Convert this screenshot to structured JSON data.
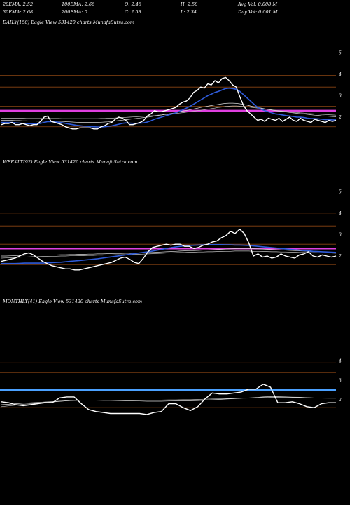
{
  "header": {
    "row1": [
      {
        "label": "20EMA:",
        "value": "2.52"
      },
      {
        "label": "100EMA:",
        "value": "2.66"
      },
      {
        "label": "O:",
        "value": "2.46"
      },
      {
        "label": "H:",
        "value": "2.58"
      },
      {
        "label": "Avg Vol:",
        "value": "0.008 M"
      }
    ],
    "row2": [
      {
        "label": "30EMA:",
        "value": "2.68"
      },
      {
        "label": "200EMA:",
        "value": "0"
      },
      {
        "label": "C:",
        "value": "2.58"
      },
      {
        "label": "L:",
        "value": "2.34"
      },
      {
        "label": "Day Vol:",
        "value": "0.001 M"
      }
    ]
  },
  "colors": {
    "background": "#000000",
    "price": "#ffffff",
    "ema_fast": "#2f5bd9",
    "ema_slow": "#d9d9d9",
    "magenta_line": "#e040e0",
    "blue_level": "#4aa0ff",
    "grid": "#8b4513"
  },
  "chart_data": [
    {
      "type": "line",
      "title": "DAILY(158) Eagle  View  531420  charts MunafaSutra.com",
      "ylim": [
        1.6,
        5.2
      ],
      "yticks": [
        "5",
        "4",
        "3",
        "2"
      ],
      "hlines": [
        4.5,
        3.95,
        3.05,
        2.1
      ],
      "magenta_level": 2.85,
      "series": [
        {
          "role": "price",
          "values": [
            2.2,
            2.25,
            2.25,
            2.3,
            2.2,
            2.2,
            2.25,
            2.2,
            2.15,
            2.2,
            2.2,
            2.35,
            2.55,
            2.6,
            2.35,
            2.3,
            2.25,
            2.2,
            2.1,
            2.05,
            2.0,
            2.0,
            2.05,
            2.05,
            2.05,
            2.05,
            2.0,
            2.0,
            2.1,
            2.15,
            2.25,
            2.3,
            2.45,
            2.55,
            2.5,
            2.4,
            2.2,
            2.2,
            2.25,
            2.3,
            2.4,
            2.6,
            2.7,
            2.85,
            2.8,
            2.8,
            2.85,
            2.9,
            2.95,
            3.0,
            3.15,
            3.25,
            3.3,
            3.45,
            3.7,
            3.8,
            3.95,
            3.9,
            4.1,
            4.05,
            4.25,
            4.15,
            4.35,
            4.4,
            4.25,
            4.05,
            3.95,
            3.5,
            3.1,
            2.85,
            2.7,
            2.55,
            2.4,
            2.45,
            2.35,
            2.5,
            2.45,
            2.4,
            2.5,
            2.35,
            2.45,
            2.55,
            2.4,
            2.35,
            2.5,
            2.4,
            2.35,
            2.3,
            2.45,
            2.4,
            2.35,
            2.3,
            2.4,
            2.35,
            2.4
          ]
        },
        {
          "role": "ema_fast",
          "values": [
            2.3,
            2.3,
            2.3,
            2.3,
            2.28,
            2.27,
            2.26,
            2.25,
            2.24,
            2.24,
            2.24,
            2.26,
            2.3,
            2.34,
            2.34,
            2.33,
            2.31,
            2.29,
            2.26,
            2.23,
            2.2,
            2.17,
            2.15,
            2.13,
            2.12,
            2.11,
            2.1,
            2.09,
            2.09,
            2.1,
            2.12,
            2.14,
            2.18,
            2.22,
            2.26,
            2.28,
            2.27,
            2.26,
            2.26,
            2.27,
            2.28,
            2.32,
            2.38,
            2.45,
            2.5,
            2.55,
            2.6,
            2.65,
            2.7,
            2.75,
            2.82,
            2.9,
            2.97,
            3.05,
            3.15,
            3.25,
            3.35,
            3.45,
            3.55,
            3.62,
            3.7,
            3.75,
            3.82,
            3.88,
            3.9,
            3.88,
            3.85,
            3.75,
            3.6,
            3.45,
            3.3,
            3.15,
            3.0,
            2.92,
            2.85,
            2.8,
            2.75,
            2.7,
            2.68,
            2.65,
            2.62,
            2.6,
            2.58,
            2.55,
            2.55,
            2.53,
            2.5,
            2.48,
            2.48,
            2.47,
            2.45,
            2.43,
            2.43,
            2.42,
            2.42
          ]
        },
        {
          "role": "ema_slow",
          "values": [
            2.4,
            2.4,
            2.4,
            2.4,
            2.39,
            2.39,
            2.38,
            2.38,
            2.37,
            2.37,
            2.36,
            2.36,
            2.36,
            2.37,
            2.37,
            2.36,
            2.36,
            2.35,
            2.34,
            2.33,
            2.32,
            2.31,
            2.3,
            2.3,
            2.3,
            2.3,
            2.3,
            2.3,
            2.31,
            2.32,
            2.33,
            2.35,
            2.37,
            2.39,
            2.41,
            2.43,
            2.45,
            2.47,
            2.49,
            2.51,
            2.53,
            2.55,
            2.57,
            2.6,
            2.62,
            2.65,
            2.68,
            2.7,
            2.73,
            2.76,
            2.8,
            2.83,
            2.86,
            2.9,
            2.93,
            2.96,
            3.0,
            3.03,
            3.06,
            3.09,
            3.12,
            3.14,
            3.17,
            3.19,
            3.2,
            3.2,
            3.19,
            3.17,
            3.14,
            3.11,
            3.07,
            3.03,
            3.0,
            2.97,
            2.94,
            2.91,
            2.88,
            2.85,
            2.83,
            2.81,
            2.79,
            2.77,
            2.75,
            2.73,
            2.71,
            2.7,
            2.68,
            2.66,
            2.64,
            2.63,
            2.61,
            2.6,
            2.59,
            2.58,
            2.57
          ]
        },
        {
          "role": "ema_slow2",
          "values": [
            2.5,
            2.5,
            2.5,
            2.5,
            2.5,
            2.5,
            2.5,
            2.49,
            2.49,
            2.49,
            2.49,
            2.49,
            2.49,
            2.49,
            2.49,
            2.49,
            2.49,
            2.48,
            2.48,
            2.48,
            2.48,
            2.48,
            2.48,
            2.48,
            2.48,
            2.48,
            2.48,
            2.48,
            2.49,
            2.49,
            2.5,
            2.5,
            2.51,
            2.52,
            2.53,
            2.54,
            2.55,
            2.56,
            2.57,
            2.58,
            2.59,
            2.6,
            2.61,
            2.62,
            2.64,
            2.65,
            2.67,
            2.68,
            2.7,
            2.72,
            2.74,
            2.76,
            2.78,
            2.8,
            2.82,
            2.85,
            2.87,
            2.9,
            2.92,
            2.95,
            2.97,
            3.0,
            3.02,
            3.05,
            3.06,
            3.07,
            3.07,
            3.06,
            3.05,
            3.03,
            3.01,
            2.99,
            2.97,
            2.95,
            2.93,
            2.91,
            2.89,
            2.87,
            2.85,
            2.83,
            2.82,
            2.8,
            2.78,
            2.77,
            2.75,
            2.74,
            2.72,
            2.71,
            2.7,
            2.69,
            2.68,
            2.67,
            2.66,
            2.65,
            2.64
          ]
        }
      ]
    },
    {
      "type": "line",
      "title": "WEEKLY(92) Eagle  View  531420  charts MunafaSutra.com",
      "ylim": [
        1.6,
        5.2
      ],
      "yticks": [
        "5",
        "4",
        "3",
        "2"
      ],
      "hlines": [
        4.55,
        3.95,
        3.1,
        2.15
      ],
      "magenta_level": 2.9,
      "series": [
        {
          "role": "price",
          "values": [
            2.3,
            2.35,
            2.4,
            2.45,
            2.55,
            2.65,
            2.7,
            2.6,
            2.45,
            2.3,
            2.2,
            2.1,
            2.05,
            2.0,
            1.95,
            1.95,
            1.9,
            1.9,
            1.95,
            2.0,
            2.05,
            2.1,
            2.15,
            2.2,
            2.25,
            2.35,
            2.45,
            2.5,
            2.4,
            2.25,
            2.2,
            2.45,
            2.75,
            2.95,
            3.0,
            3.05,
            3.1,
            3.05,
            3.1,
            3.1,
            3.0,
            3.0,
            2.9,
            2.95,
            3.05,
            3.1,
            3.2,
            3.25,
            3.4,
            3.5,
            3.7,
            3.6,
            3.8,
            3.6,
            3.15,
            2.55,
            2.65,
            2.5,
            2.55,
            2.45,
            2.5,
            2.65,
            2.55,
            2.5,
            2.45,
            2.6,
            2.65,
            2.75,
            2.55,
            2.5,
            2.6,
            2.55,
            2.5,
            2.55
          ]
        },
        {
          "role": "ema_fast",
          "values": [
            2.2,
            2.2,
            2.2,
            2.2,
            2.21,
            2.22,
            2.22,
            2.22,
            2.22,
            2.22,
            2.23,
            2.24,
            2.25,
            2.26,
            2.28,
            2.3,
            2.32,
            2.34,
            2.36,
            2.38,
            2.4,
            2.42,
            2.45,
            2.48,
            2.51,
            2.54,
            2.57,
            2.6,
            2.63,
            2.66,
            2.69,
            2.72,
            2.75,
            2.78,
            2.82,
            2.86,
            2.9,
            2.94,
            2.97,
            3.0,
            3.02,
            3.04,
            3.05,
            3.06,
            3.07,
            3.08,
            3.08,
            3.08,
            3.08,
            3.07,
            3.07,
            3.06,
            3.06,
            3.05,
            3.04,
            3.02,
            3.0,
            2.98,
            2.96,
            2.94,
            2.92,
            2.9,
            2.88,
            2.86,
            2.84,
            2.82,
            2.8,
            2.79,
            2.77,
            2.76,
            2.75,
            2.74,
            2.73,
            2.72
          ]
        },
        {
          "role": "ema_slow",
          "values": [
            2.55,
            2.55,
            2.56,
            2.57,
            2.58,
            2.59,
            2.6,
            2.6,
            2.6,
            2.6,
            2.6,
            2.6,
            2.6,
            2.61,
            2.61,
            2.62,
            2.62,
            2.63,
            2.63,
            2.64,
            2.64,
            2.65,
            2.65,
            2.66,
            2.66,
            2.67,
            2.67,
            2.68,
            2.68,
            2.69,
            2.69,
            2.7,
            2.71,
            2.72,
            2.73,
            2.74,
            2.75,
            2.76,
            2.77,
            2.78,
            2.79,
            2.8,
            2.8,
            2.81,
            2.82,
            2.83,
            2.84,
            2.85,
            2.86,
            2.87,
            2.88,
            2.89,
            2.9,
            2.9,
            2.9,
            2.89,
            2.88,
            2.87,
            2.86,
            2.85,
            2.84,
            2.83,
            2.82,
            2.81,
            2.8,
            2.79,
            2.78,
            2.77,
            2.76,
            2.75,
            2.75,
            2.74,
            2.73,
            2.72
          ]
        },
        {
          "role": "ema_slow2",
          "values": [
            2.45,
            2.46,
            2.47,
            2.48,
            2.49,
            2.5,
            2.51,
            2.52,
            2.52,
            2.53,
            2.53,
            2.54,
            2.54,
            2.55,
            2.55,
            2.56,
            2.56,
            2.57,
            2.57,
            2.58,
            2.58,
            2.59,
            2.59,
            2.6,
            2.6,
            2.61,
            2.61,
            2.62,
            2.62,
            2.63,
            2.63,
            2.64,
            2.65,
            2.66,
            2.67,
            2.68,
            2.69,
            2.7,
            2.71,
            2.72,
            2.72,
            2.73,
            2.73,
            2.74,
            2.74,
            2.75,
            2.75,
            2.76,
            2.76,
            2.77,
            2.77,
            2.78,
            2.78,
            2.78,
            2.78,
            2.77,
            2.77,
            2.76,
            2.76,
            2.75,
            2.75,
            2.74,
            2.74,
            2.73,
            2.73,
            2.72,
            2.72,
            2.71,
            2.71,
            2.7,
            2.7,
            2.69,
            2.69,
            2.68
          ]
        }
      ]
    },
    {
      "type": "line",
      "title": "MONTHLY(41) Eagle  View  531420  charts MunafaSutra.com",
      "ylim": [
        1.4,
        5.0
      ],
      "yticks": [
        "4",
        "3",
        "2"
      ],
      "hlines": [
        4.45,
        3.95,
        3.1,
        2.15
      ],
      "blue_level": 3.05,
      "series": [
        {
          "role": "price",
          "values": [
            2.45,
            2.4,
            2.3,
            2.25,
            2.3,
            2.35,
            2.4,
            2.4,
            2.65,
            2.7,
            2.7,
            2.35,
            2.05,
            1.95,
            1.9,
            1.85,
            1.85,
            1.85,
            1.85,
            1.85,
            1.8,
            1.9,
            1.95,
            2.35,
            2.35,
            2.15,
            2.0,
            2.2,
            2.6,
            2.9,
            2.85,
            2.85,
            2.9,
            2.95,
            3.1,
            3.1,
            3.35,
            3.2,
            2.4,
            2.4,
            2.45,
            2.35,
            2.2,
            2.15,
            2.35,
            2.4,
            2.4
          ]
        },
        {
          "role": "ema_slow",
          "values": [
            2.3,
            2.32,
            2.35,
            2.38,
            2.4,
            2.42,
            2.44,
            2.46,
            2.48,
            2.5,
            2.52,
            2.53,
            2.53,
            2.53,
            2.52,
            2.52,
            2.51,
            2.5,
            2.5,
            2.49,
            2.48,
            2.48,
            2.48,
            2.49,
            2.5,
            2.5,
            2.5,
            2.51,
            2.53,
            2.55,
            2.57,
            2.59,
            2.61,
            2.63,
            2.65,
            2.67,
            2.7,
            2.72,
            2.71,
            2.7,
            2.69,
            2.68,
            2.66,
            2.65,
            2.64,
            2.63,
            2.63
          ]
        },
        {
          "role": "ema_slow2",
          "values": [
            2.2,
            2.24,
            2.28,
            2.32,
            2.35,
            2.38,
            2.41,
            2.44,
            2.47,
            2.5,
            2.52,
            2.53,
            2.54,
            2.54,
            2.54,
            2.54,
            2.54,
            2.54,
            2.54,
            2.54,
            2.54,
            2.54,
            2.54,
            2.55,
            2.55,
            2.56,
            2.56,
            2.57,
            2.58,
            2.59,
            2.6,
            2.61,
            2.62,
            2.63,
            2.64,
            2.65,
            2.67,
            2.68,
            2.68,
            2.68,
            2.67,
            2.67,
            2.66,
            2.65,
            2.65,
            2.64,
            2.64
          ]
        }
      ]
    }
  ]
}
